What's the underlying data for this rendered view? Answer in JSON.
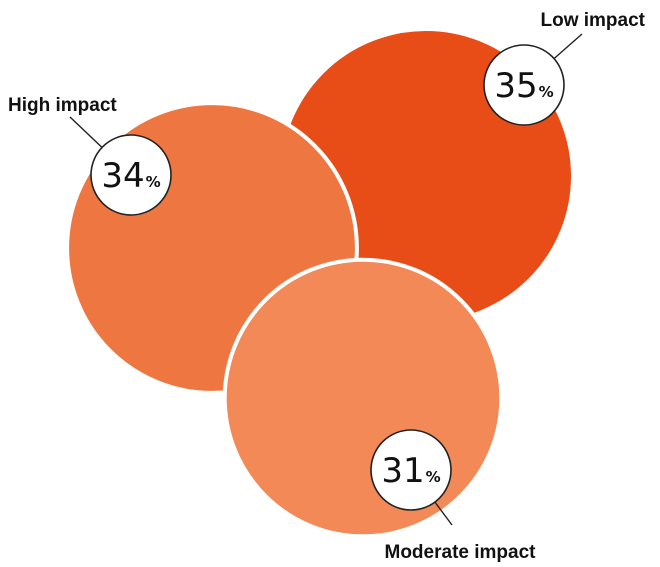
{
  "chart_data": {
    "type": "bubble",
    "title": "",
    "categories": [
      "High impact",
      "Low impact",
      "Moderate impact"
    ],
    "values": [
      34,
      35,
      31
    ],
    "unit": "%",
    "colors": {
      "High impact": "#EE7641",
      "Low impact": "#E84C17",
      "Moderate impact": "#F28957"
    }
  }
}
